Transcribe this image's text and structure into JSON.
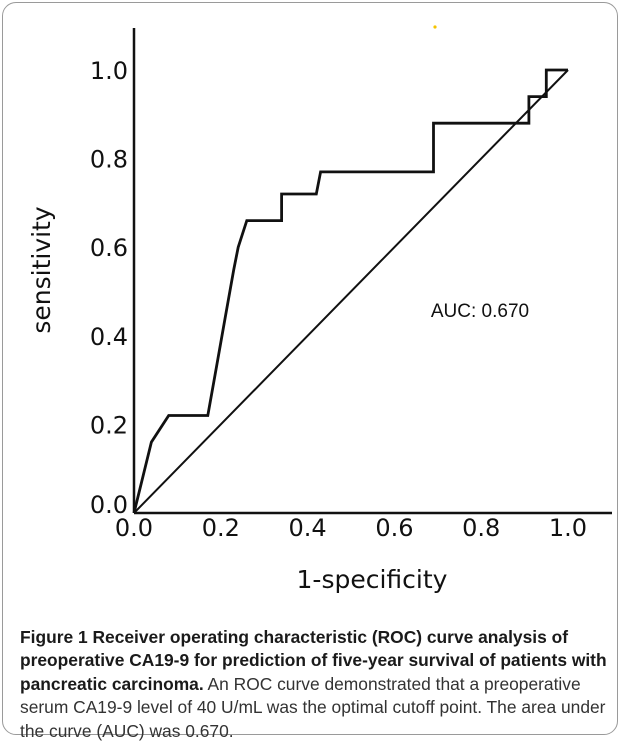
{
  "chart_data": {
    "type": "line",
    "xlabel": "1-specificity",
    "ylabel": "sensitivity",
    "xlim": [
      0,
      1.0
    ],
    "ylim": [
      0,
      1.0
    ],
    "x_ticks": [
      "0.0",
      "0.2",
      "0.4",
      "0.6",
      "0.8",
      "1.0"
    ],
    "y_ticks": [
      "0.0",
      "0.2",
      "0.4",
      "0.6",
      "0.8",
      "1.0"
    ],
    "annotation": "AUC: 0.670",
    "grid": false,
    "series": [
      {
        "values_x": [
          0.0,
          0.04,
          0.08,
          0.17,
          0.19,
          0.19,
          0.21,
          0.23,
          0.24,
          0.26,
          0.26,
          0.34,
          0.34,
          0.42,
          0.43,
          0.69,
          0.69,
          0.91,
          0.91,
          0.95,
          0.95,
          1.0
        ],
        "values_y": [
          0.0,
          0.16,
          0.22,
          0.22,
          0.33,
          0.33,
          0.44,
          0.55,
          0.6,
          0.66,
          0.66,
          0.66,
          0.72,
          0.72,
          0.77,
          0.77,
          0.88,
          0.88,
          0.94,
          0.94,
          1.0,
          1.0
        ]
      }
    ],
    "reference_line": {
      "x": [
        0,
        1.0
      ],
      "y": [
        0,
        1.0
      ]
    }
  },
  "caption": {
    "bold": "Figure 1 Receiver operating characteristic (ROC) curve analysis of preoperative CA19-9 for prediction of five-year survival of patients with pancreatic carcinoma.",
    "body": " An ROC curve demonstrated that a preoperative serum CA19-9 level of 40 U/mL was the optimal cutoff point. The area under the curve (AUC) was 0.670."
  },
  "colors": {
    "line": "#111111",
    "dot": "#f5c400"
  }
}
